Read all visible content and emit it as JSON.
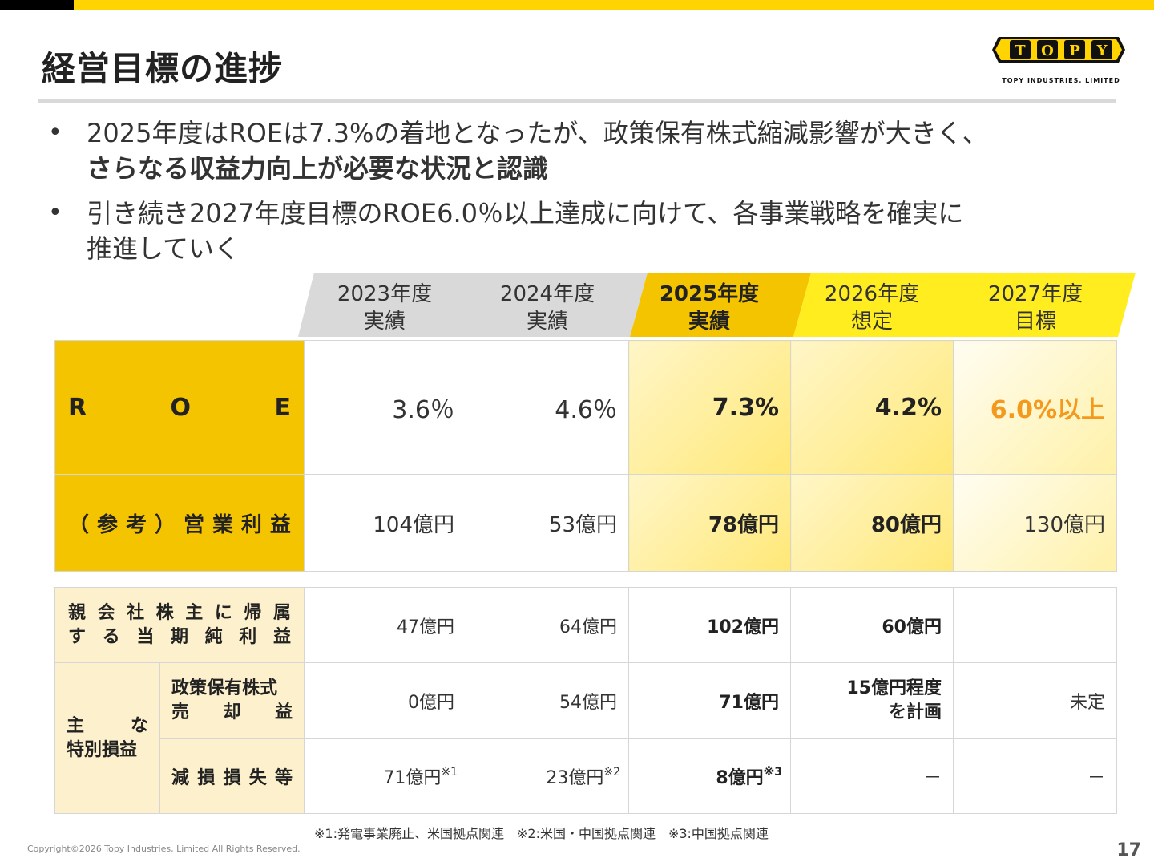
{
  "header": {
    "title": "経営目標の進捗",
    "logo_text": "TOPY",
    "logo_subtext": "TOPY INDUSTRIES, LIMITED"
  },
  "bullets": [
    {
      "marker": "•",
      "line1": "2025年度はROEは7.3%の着地となったが、政策保有株式縮減影響が大きく、",
      "line2_bold": "さらなる収益力向上が必要な状況と認識"
    },
    {
      "marker": "•",
      "line1": "引き続き2027年度目標のROE6.0％以上達成に向けて、各事業戦略を確実に",
      "line2": "推進していく"
    }
  ],
  "columns": [
    {
      "year": "2023年度",
      "type": "実績"
    },
    {
      "year": "2024年度",
      "type": "実績"
    },
    {
      "year": "2025年度",
      "type": "実績"
    },
    {
      "year": "2026年度",
      "type": "想定"
    },
    {
      "year": "2027年度",
      "type": "目標"
    }
  ],
  "table_main": {
    "roe": {
      "label": [
        "R",
        "O",
        "E"
      ],
      "values": [
        "3.6％",
        "4.6％",
        "7.3%",
        "4.2%",
        "6.0%以上"
      ]
    },
    "op_profit": {
      "label": [
        "（",
        "参",
        "考",
        "）",
        "営",
        "業",
        "利",
        "益"
      ],
      "values": [
        "104億円",
        "53億円",
        "78億円",
        "80億円",
        "130億円"
      ]
    }
  },
  "table_sub": {
    "net_income": {
      "label_line1": [
        "親",
        "会",
        "社",
        "株",
        "主",
        "に",
        "帰",
        "属"
      ],
      "label_line2": [
        "す",
        "る",
        "当",
        "期",
        "純",
        "利",
        "益"
      ],
      "values": [
        "47億円",
        "64億円",
        "102億円",
        "60億円",
        ""
      ]
    },
    "special": {
      "group_label_line1": [
        "主",
        "な"
      ],
      "group_label_line2": "特別損益",
      "gain": {
        "label_line1": "政策保有株式",
        "label_line2": [
          "売",
          "却",
          "益"
        ],
        "values": [
          "0億円",
          "54億円",
          "71億円",
          "",
          "未定"
        ],
        "value_2026_line1": "15億円程度",
        "value_2026_line2": "を計画"
      },
      "loss": {
        "label": [
          "減",
          "損",
          "損",
          "失",
          "等"
        ],
        "values": [
          "71億円",
          "23億円",
          "8億円",
          "－",
          "－"
        ],
        "notes": [
          "※1",
          "※2",
          "※3"
        ]
      }
    }
  },
  "footnote": "※1:発電事業廃止、米国拠点関連　※2:米国・中国拠点関連　※3:中国拠点関連",
  "copyright": "Copyright©2026 Topy Industries, Limited All Rights Reserved.",
  "page_number": "17",
  "colors": {
    "brand_yellow": "#FFD400",
    "label_yellow": "#F5C400",
    "label_light": "#FDF1CD",
    "highlight_orange": "#F39A1E",
    "header_gray": "#D9D9D9"
  }
}
